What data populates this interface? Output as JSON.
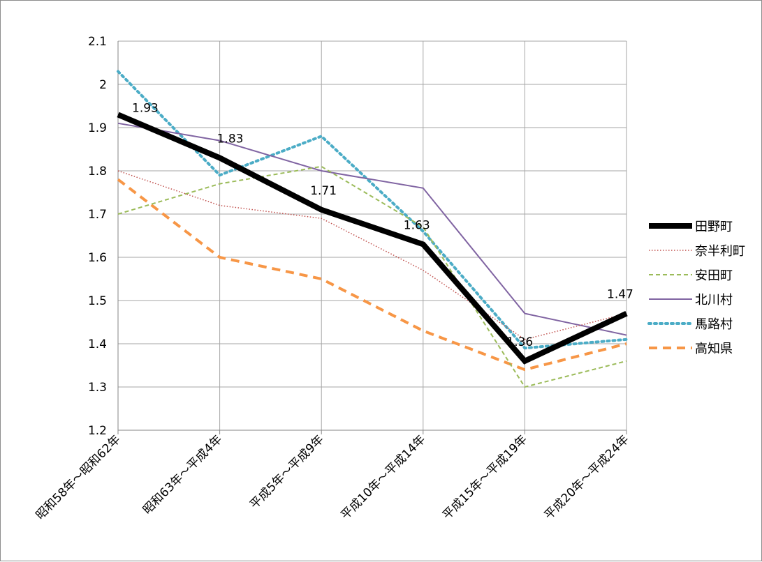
{
  "chart_data": {
    "type": "line",
    "categories": [
      "昭和58年～昭和62年",
      "昭和63年～平成4年",
      "平成5年～平成9年",
      "平成10年～平成14年",
      "平成15年～平成19年",
      "平成20年～平成24年"
    ],
    "ylim": [
      1.2,
      2.1
    ],
    "yticks": [
      "1.2",
      "1.3",
      "1.4",
      "1.5",
      "1.6",
      "1.7",
      "1.8",
      "1.9",
      "2",
      "2.1"
    ],
    "grid": true,
    "legend_position": "right",
    "series": [
      {
        "name": "田野町",
        "values": [
          1.93,
          1.83,
          1.71,
          1.63,
          1.36,
          1.47
        ],
        "color": "#000000",
        "style": "solid-thick",
        "labels": [
          "1.93",
          "1.83",
          "1.71",
          "1.63",
          "1.36",
          "1.47"
        ]
      },
      {
        "name": "奈半利町",
        "values": [
          1.8,
          1.72,
          1.69,
          1.57,
          1.41,
          1.47
        ],
        "color": "#c0504d",
        "style": "dotted"
      },
      {
        "name": "安田町",
        "values": [
          1.7,
          1.77,
          1.81,
          1.67,
          1.3,
          1.36
        ],
        "color": "#9bbb59",
        "style": "dashed"
      },
      {
        "name": "北川村",
        "values": [
          1.91,
          1.87,
          1.8,
          1.76,
          1.47,
          1.42
        ],
        "color": "#8064a2",
        "style": "solid"
      },
      {
        "name": "馬路村",
        "values": [
          2.03,
          1.79,
          1.88,
          1.66,
          1.39,
          1.41
        ],
        "color": "#4bacc6",
        "style": "dotted-thick"
      },
      {
        "name": "高知県",
        "values": [
          1.78,
          1.6,
          1.55,
          1.43,
          1.34,
          1.4
        ],
        "color": "#f79646",
        "style": "dashed-thick"
      }
    ]
  }
}
